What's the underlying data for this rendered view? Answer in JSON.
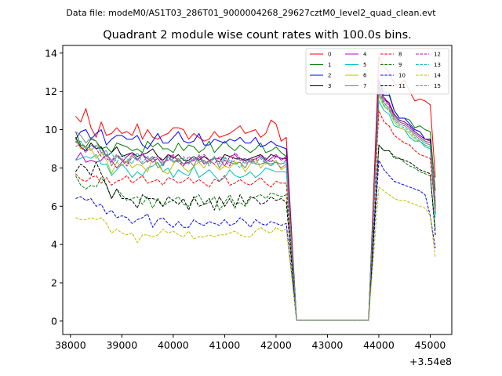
{
  "chart_data": {
    "type": "line",
    "suptitle": "Data file: modeM0/AS1T03_286T01_9000004268_29627cztM0_level2_quad_clean.evt",
    "title": "Quadrant 2 module wise count rates with 100.0s bins.",
    "xlabel": "",
    "ylabel": "",
    "x_offset_label": "+3.54e8",
    "xlim": [
      37850,
      45420
    ],
    "ylim": [
      -0.7,
      14.4
    ],
    "xticks": [
      38000,
      39000,
      40000,
      41000,
      42000,
      43000,
      44000,
      45000
    ],
    "xtick_labels": [
      "38000",
      "39000",
      "40000",
      "41000",
      "42000",
      "43000",
      "44000",
      "45000"
    ],
    "yticks": [
      0,
      2,
      4,
      6,
      8,
      10,
      12,
      14
    ],
    "ytick_labels": [
      "0",
      "2",
      "4",
      "6",
      "8",
      "10",
      "12",
      "14"
    ],
    "legend_position": "top-right",
    "x": [
      38100,
      38200,
      38300,
      38400,
      38500,
      38600,
      38700,
      38800,
      38900,
      39000,
      39100,
      39200,
      39300,
      39400,
      39500,
      39600,
      39700,
      39800,
      39900,
      40000,
      40100,
      40200,
      40300,
      40400,
      40500,
      40600,
      40700,
      40800,
      40900,
      41000,
      41100,
      41200,
      41300,
      41400,
      41500,
      41600,
      41700,
      41800,
      41900,
      42000,
      42100,
      42200,
      42400,
      42600,
      42800,
      43000,
      43200,
      43400,
      43600,
      43800,
      44000,
      44100,
      44200,
      44300,
      44400,
      44500,
      44600,
      44700,
      44800,
      44900,
      45000,
      45100
    ],
    "series": [
      {
        "name": "0",
        "color": "#ff0000",
        "dash": false,
        "values": [
          10.7,
          10.4,
          11.1,
          10.1,
          9.6,
          10.4,
          9.7,
          9.8,
          10.1,
          9.8,
          9.9,
          9.7,
          10.3,
          9.5,
          10.0,
          9.6,
          9.5,
          9.7,
          9.8,
          10.1,
          10.1,
          10.0,
          9.5,
          9.8,
          9.6,
          9.4,
          9.5,
          9.9,
          9.6,
          9.7,
          9.8,
          10.0,
          10.2,
          9.8,
          9.9,
          10.0,
          9.6,
          9.8,
          10.5,
          10.3,
          9.4,
          9.6,
          0.05,
          0.05,
          0.05,
          0.05,
          0.05,
          0.05,
          0.05,
          0.05,
          13.8,
          13.3,
          13.0,
          12.4,
          12.3,
          12.6,
          12.0,
          11.5,
          11.6,
          11.5,
          11.3,
          7.5
        ]
      },
      {
        "name": "1",
        "color": "#008000",
        "dash": false,
        "values": [
          9.9,
          9.2,
          9.1,
          9.5,
          9.4,
          9.0,
          9.1,
          8.8,
          9.3,
          9.2,
          9.1,
          8.9,
          9.0,
          8.8,
          9.4,
          9.1,
          9.3,
          9.0,
          9.0,
          8.8,
          9.3,
          8.9,
          9.2,
          9.1,
          8.8,
          9.0,
          9.4,
          8.8,
          9.1,
          9.4,
          9.1,
          8.9,
          9.2,
          9.0,
          8.8,
          9.0,
          9.3,
          8.8,
          8.9,
          9.1,
          8.8,
          8.6,
          0.05,
          0.05,
          0.05,
          0.05,
          0.05,
          0.05,
          0.05,
          0.05,
          12.5,
          12.0,
          11.9,
          11.0,
          10.6,
          10.6,
          10.5,
          10.1,
          10.2,
          10.0,
          9.9,
          6.8
        ]
      },
      {
        "name": "2",
        "color": "#0000ff",
        "dash": false,
        "values": [
          9.5,
          9.9,
          10.0,
          9.5,
          9.8,
          10.0,
          9.2,
          9.5,
          9.7,
          9.7,
          9.5,
          9.5,
          9.7,
          9.2,
          9.0,
          9.4,
          9.8,
          9.3,
          9.3,
          9.6,
          9.9,
          9.4,
          9.3,
          9.4,
          9.8,
          9.2,
          9.2,
          9.5,
          9.4,
          9.3,
          9.5,
          9.4,
          9.6,
          9.3,
          9.3,
          9.6,
          9.1,
          9.2,
          9.4,
          9.2,
          9.1,
          9.0,
          0.05,
          0.05,
          0.05,
          0.05,
          0.05,
          0.05,
          0.05,
          0.05,
          12.6,
          11.8,
          11.8,
          11.0,
          10.6,
          10.6,
          10.3,
          10.0,
          9.9,
          9.5,
          9.5,
          5.6
        ]
      },
      {
        "name": "3",
        "color": "#000000",
        "dash": false,
        "values": [
          9.6,
          9.1,
          8.9,
          9.3,
          9.0,
          9.1,
          8.6,
          8.8,
          9.1,
          8.6,
          8.7,
          8.8,
          8.6,
          8.7,
          8.8,
          9.0,
          8.6,
          8.4,
          8.7,
          8.5,
          8.7,
          8.4,
          8.4,
          8.6,
          8.4,
          8.6,
          8.4,
          8.5,
          8.3,
          8.7,
          8.6,
          8.5,
          8.5,
          8.4,
          8.5,
          8.6,
          8.7,
          8.4,
          8.7,
          8.6,
          8.5,
          8.5,
          0.05,
          0.05,
          0.05,
          0.05,
          0.05,
          0.05,
          0.05,
          0.05,
          12.3,
          11.6,
          11.4,
          10.8,
          10.5,
          10.4,
          10.2,
          9.9,
          9.7,
          9.5,
          9.5,
          6.0
        ]
      },
      {
        "name": "4",
        "color": "#bf00bf",
        "dash": false,
        "values": [
          8.4,
          8.8,
          8.3,
          8.4,
          8.3,
          8.4,
          8.7,
          8.4,
          8.0,
          8.3,
          8.6,
          8.8,
          8.4,
          8.7,
          8.5,
          8.3,
          8.5,
          8.1,
          8.7,
          8.6,
          8.4,
          8.2,
          8.3,
          8.4,
          8.6,
          8.2,
          8.4,
          8.5,
          8.5,
          8.1,
          8.6,
          8.7,
          8.4,
          8.5,
          8.3,
          8.5,
          8.6,
          8.3,
          8.5,
          8.7,
          8.4,
          8.6,
          0.05,
          0.05,
          0.05,
          0.05,
          0.05,
          0.05,
          0.05,
          0.05,
          12.2,
          11.6,
          11.3,
          10.7,
          10.4,
          10.3,
          10.1,
          9.8,
          9.6,
          9.4,
          9.3,
          6.2
        ]
      },
      {
        "name": "5",
        "color": "#00bfbf",
        "dash": false,
        "values": [
          8.4,
          8.5,
          8.6,
          8.5,
          8.7,
          8.2,
          8.2,
          7.6,
          7.9,
          8.2,
          7.9,
          7.5,
          7.8,
          7.6,
          8.0,
          8.1,
          8.3,
          7.8,
          8.0,
          7.5,
          7.9,
          7.7,
          7.6,
          8.1,
          7.5,
          7.7,
          7.9,
          7.6,
          7.3,
          7.5,
          7.9,
          7.6,
          7.5,
          7.6,
          7.8,
          7.5,
          7.7,
          8.0,
          7.9,
          7.8,
          7.8,
          7.8,
          0.05,
          0.05,
          0.05,
          0.05,
          0.05,
          0.05,
          0.05,
          0.05,
          11.5,
          11.0,
          10.8,
          10.2,
          10.1,
          10.0,
          9.6,
          9.4,
          9.4,
          9.1,
          9.0,
          5.4
        ]
      },
      {
        "name": "6",
        "color": "#bfbf00",
        "dash": false,
        "values": [
          9.5,
          9.0,
          9.1,
          9.0,
          8.5,
          8.8,
          8.4,
          7.7,
          8.3,
          8.1,
          8.4,
          8.0,
          8.2,
          8.1,
          7.8,
          8.5,
          8.2,
          7.8,
          7.7,
          8.2,
          8.5,
          8.0,
          7.8,
          8.1,
          8.3,
          8.0,
          8.4,
          8.2,
          7.9,
          8.1,
          8.0,
          8.3,
          8.3,
          7.8,
          8.2,
          8.5,
          8.0,
          8.3,
          8.1,
          8.4,
          7.9,
          8.1,
          0.05,
          0.05,
          0.05,
          0.05,
          0.05,
          0.05,
          0.05,
          0.05,
          11.8,
          11.2,
          11.0,
          10.4,
          10.1,
          10.0,
          9.8,
          9.5,
          9.4,
          9.2,
          9.1,
          6.1
        ]
      },
      {
        "name": "7",
        "color": "#808080",
        "dash": false,
        "values": [
          9.9,
          9.7,
          9.3,
          9.6,
          9.4,
          8.8,
          8.9,
          8.1,
          8.6,
          8.4,
          8.3,
          8.7,
          8.5,
          8.2,
          8.4,
          8.6,
          8.0,
          8.2,
          8.6,
          8.3,
          8.5,
          8.2,
          8.4,
          8.1,
          8.7,
          8.3,
          8.3,
          8.6,
          8.0,
          8.4,
          8.3,
          8.2,
          8.3,
          8.0,
          8.5,
          8.2,
          8.2,
          8.3,
          8.2,
          8.3,
          8.0,
          8.2,
          0.05,
          0.05,
          0.05,
          0.05,
          0.05,
          0.05,
          0.05,
          0.05,
          12.0,
          11.4,
          11.1,
          10.6,
          10.3,
          10.2,
          10.0,
          9.7,
          9.5,
          9.3,
          9.2,
          5.9
        ]
      },
      {
        "name": "8",
        "color": "#ff0000",
        "dash": true,
        "values": [
          7.7,
          7.4,
          7.3,
          7.5,
          7.6,
          7.2,
          7.5,
          7.1,
          7.3,
          7.4,
          7.6,
          7.2,
          7.4,
          7.6,
          7.2,
          7.3,
          7.4,
          7.1,
          7.5,
          7.4,
          7.2,
          7.3,
          7.5,
          7.2,
          7.4,
          7.2,
          7.0,
          7.4,
          7.3,
          7.6,
          7.1,
          7.2,
          7.4,
          7.2,
          7.1,
          7.3,
          7.5,
          7.2,
          7.0,
          7.3,
          7.2,
          7.2,
          0.05,
          0.05,
          0.05,
          0.05,
          0.05,
          0.05,
          0.05,
          0.05,
          11.0,
          10.4,
          10.2,
          9.7,
          9.5,
          9.3,
          9.2,
          8.9,
          8.7,
          8.6,
          8.5,
          5.8
        ]
      },
      {
        "name": "9",
        "color": "#008000",
        "dash": true,
        "values": [
          7.6,
          7.1,
          6.9,
          7.1,
          7.0,
          7.5,
          7.1,
          6.4,
          6.9,
          6.6,
          6.3,
          6.4,
          6.5,
          6.1,
          6.5,
          5.9,
          6.4,
          6.0,
          6.2,
          6.3,
          6.5,
          6.1,
          6.0,
          6.4,
          6.6,
          6.1,
          6.2,
          6.5,
          5.8,
          6.2,
          6.6,
          6.1,
          6.2,
          6.0,
          6.4,
          6.5,
          6.6,
          6.4,
          6.7,
          6.6,
          6.5,
          6.6,
          0.05,
          0.05,
          0.05,
          0.05,
          0.05,
          0.05,
          0.05,
          0.05,
          9.2,
          8.9,
          8.9,
          8.5,
          8.5,
          8.3,
          8.1,
          8.0,
          7.8,
          7.7,
          7.6,
          4.8
        ]
      },
      {
        "name": "10",
        "color": "#0000ff",
        "dash": true,
        "values": [
          6.4,
          6.5,
          6.3,
          6.4,
          6.0,
          6.1,
          5.6,
          5.8,
          5.4,
          5.5,
          5.4,
          5.1,
          5.3,
          5.4,
          5.6,
          4.9,
          5.3,
          5.4,
          5.1,
          4.9,
          5.2,
          4.9,
          4.9,
          5.3,
          5.1,
          5.0,
          5.2,
          5.1,
          5.0,
          5.3,
          5.0,
          5.1,
          5.4,
          5.2,
          4.9,
          5.3,
          5.1,
          5.0,
          5.2,
          5.1,
          5.0,
          5.1,
          0.05,
          0.05,
          0.05,
          0.05,
          0.05,
          0.05,
          0.05,
          0.05,
          8.4,
          7.9,
          7.6,
          7.3,
          7.2,
          7.1,
          7.0,
          6.9,
          6.8,
          6.6,
          5.5,
          3.8
        ]
      },
      {
        "name": "11",
        "color": "#000000",
        "dash": true,
        "values": [
          7.8,
          8.2,
          8.0,
          7.6,
          8.3,
          7.7,
          7.1,
          6.4,
          6.9,
          6.4,
          6.4,
          6.3,
          5.9,
          6.6,
          6.4,
          6.4,
          6.3,
          6.0,
          6.5,
          6.3,
          6.1,
          6.4,
          5.8,
          6.5,
          6.0,
          6.1,
          6.4,
          5.8,
          6.5,
          6.0,
          6.4,
          5.9,
          6.6,
          6.1,
          6.5,
          6.4,
          6.1,
          6.2,
          6.5,
          6.3,
          6.4,
          6.2,
          0.05,
          0.05,
          0.05,
          0.05,
          0.05,
          0.05,
          0.05,
          0.05,
          9.2,
          8.9,
          8.9,
          8.6,
          8.5,
          8.4,
          8.3,
          8.1,
          7.9,
          7.8,
          7.7,
          4.5
        ]
      },
      {
        "name": "12",
        "color": "#bf00bf",
        "dash": true,
        "values": [
          9.4,
          9.1,
          8.8,
          9.2,
          9.0,
          8.6,
          8.5,
          8.3,
          8.7,
          8.4,
          8.1,
          8.6,
          8.4,
          8.8,
          8.3,
          8.5,
          8.6,
          8.3,
          8.4,
          8.7,
          8.3,
          8.1,
          8.6,
          8.4,
          8.5,
          8.7,
          8.4,
          8.2,
          8.6,
          8.4,
          8.1,
          8.8,
          8.5,
          8.3,
          8.5,
          8.4,
          8.7,
          8.5,
          8.3,
          8.6,
          8.5,
          8.4,
          0.05,
          0.05,
          0.05,
          0.05,
          0.05,
          0.05,
          0.05,
          0.05,
          12.3,
          11.7,
          11.4,
          10.8,
          10.5,
          10.4,
          10.2,
          9.9,
          9.7,
          9.5,
          9.4,
          6.3
        ]
      },
      {
        "name": "13",
        "color": "#00bfbf",
        "dash": true,
        "values": [
          9.3,
          9.4,
          9.0,
          9.2,
          9.1,
          9.0,
          8.6,
          8.8,
          8.3,
          8.7,
          8.5,
          8.2,
          8.8,
          8.3,
          8.6,
          8.4,
          8.5,
          8.1,
          8.6,
          8.4,
          8.3,
          8.5,
          8.2,
          8.6,
          8.3,
          8.4,
          8.1,
          8.6,
          8.2,
          8.5,
          8.4,
          8.3,
          8.0,
          8.5,
          8.3,
          8.2,
          8.6,
          8.3,
          8.1,
          8.3,
          8.2,
          8.3,
          0.05,
          0.05,
          0.05,
          0.05,
          0.05,
          0.05,
          0.05,
          0.05,
          11.9,
          11.3,
          11.0,
          10.5,
          10.2,
          10.1,
          9.9,
          9.6,
          9.4,
          9.2,
          9.1,
          6.0
        ]
      },
      {
        "name": "14",
        "color": "#bfbf00",
        "dash": true,
        "values": [
          5.4,
          5.3,
          5.3,
          5.4,
          5.3,
          5.4,
          5.1,
          4.6,
          4.8,
          4.6,
          4.5,
          4.6,
          4.1,
          4.5,
          4.5,
          4.4,
          4.5,
          4.8,
          4.6,
          4.7,
          4.5,
          4.4,
          4.7,
          4.3,
          4.4,
          4.4,
          4.5,
          4.4,
          4.5,
          4.5,
          4.6,
          4.7,
          4.5,
          4.4,
          4.4,
          4.7,
          4.9,
          4.7,
          4.6,
          4.9,
          4.7,
          4.8,
          0.05,
          0.05,
          0.05,
          0.05,
          0.05,
          0.05,
          0.05,
          0.05,
          7.0,
          6.8,
          6.6,
          6.4,
          6.3,
          6.3,
          6.2,
          6.1,
          6.0,
          5.9,
          5.5,
          3.3
        ]
      },
      {
        "name": "15",
        "color": "#808080",
        "dash": true,
        "values": [
          9.1,
          9.3,
          9.1,
          8.9,
          9.2,
          8.8,
          8.6,
          8.4,
          8.7,
          8.5,
          8.2,
          8.6,
          8.4,
          8.7,
          8.3,
          8.6,
          8.5,
          8.2,
          8.5,
          8.3,
          8.4,
          8.6,
          8.2,
          8.5,
          8.3,
          8.4,
          8.2,
          8.5,
          8.3,
          8.6,
          8.2,
          8.4,
          8.5,
          8.2,
          8.4,
          8.3,
          8.5,
          8.2,
          8.4,
          8.3,
          8.2,
          8.4,
          0.05,
          0.05,
          0.05,
          0.05,
          0.05,
          0.05,
          0.05,
          0.05,
          12.1,
          11.5,
          11.2,
          10.7,
          10.4,
          10.3,
          10.1,
          9.8,
          9.6,
          9.4,
          9.3,
          6.1
        ]
      }
    ]
  }
}
